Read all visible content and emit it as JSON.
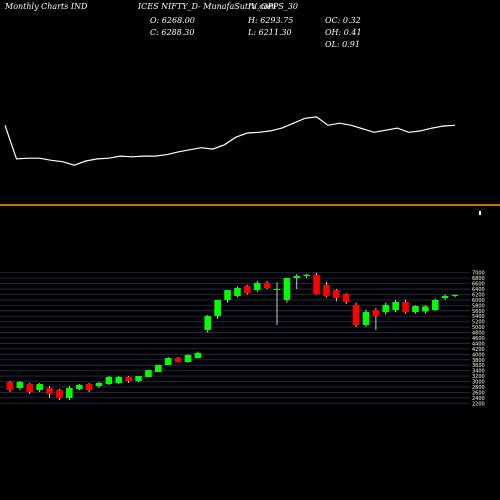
{
  "chart_data": [
    {
      "type": "line",
      "title": "Monthly Charts IND",
      "subtitle": "ICES NIFTY_D- MunafaSutra.com",
      "symbol": "IV_OPPS_30",
      "stats": [
        "O: 6268.00",
        "C: 6288.30",
        "H: 6293.75",
        "L: 6211.30",
        "OC: 0.32",
        "OH: 0.41",
        "OL: 0.91"
      ],
      "color": "#ffffff",
      "ylim": [
        0,
        100
      ],
      "values": [
        71,
        23,
        24,
        24,
        21,
        19,
        14,
        20,
        23,
        24,
        27,
        26,
        27,
        27,
        29,
        33,
        36,
        39,
        37,
        43,
        54,
        60,
        61,
        63,
        67,
        74,
        81,
        83,
        71,
        74,
        71,
        66,
        61,
        64,
        67,
        61,
        63,
        67,
        70,
        71
      ]
    },
    {
      "type": "candlestick",
      "up_color": "#00ff00",
      "down_color": "#ff0000",
      "grid": true,
      "ylim": [
        2100,
        7100
      ],
      "yticks": [
        2200,
        2400,
        2600,
        2800,
        3000,
        3200,
        3400,
        3600,
        3800,
        4000,
        4200,
        4400,
        4600,
        4800,
        5000,
        5200,
        5400,
        5600,
        5800,
        6000,
        6200,
        6400,
        6600,
        6800,
        7000
      ],
      "open": [
        2982,
        2762,
        2909,
        2688,
        2762,
        2688,
        2394,
        2725,
        2909,
        2835,
        2909,
        2945,
        3166,
        3019,
        3166,
        3350,
        3607,
        3864,
        3717,
        3864,
        4894,
        5408,
        5997,
        6144,
        6511,
        6364,
        6621,
        6364,
        5997,
        6805,
        6880,
        6916,
        6550,
        6364,
        6217,
        5813,
        5078,
        5629,
        5556,
        5629,
        5923,
        5556,
        5580,
        5629,
        6070,
        6144
      ],
      "high": [
        3019,
        3019,
        2945,
        2945,
        2835,
        2725,
        2835,
        2909,
        2945,
        2982,
        3203,
        3203,
        3203,
        3203,
        3423,
        3607,
        3900,
        3900,
        4000,
        4100,
        5450,
        6000,
        6364,
        6500,
        6550,
        6700,
        6700,
        6650,
        6805,
        6950,
        6950,
        7000,
        6650,
        6400,
        6250,
        5900,
        5650,
        5700,
        5900,
        6000,
        6000,
        5800,
        5800,
        6050,
        6200,
        6200
      ],
      "low": [
        2615,
        2688,
        2541,
        2615,
        2394,
        2321,
        2321,
        2688,
        2615,
        2762,
        2872,
        2909,
        2945,
        2982,
        3166,
        3350,
        3607,
        3700,
        3700,
        3864,
        4800,
        5300,
        5900,
        6100,
        6200,
        6300,
        6400,
        5078,
        5900,
        6400,
        6800,
        6200,
        6100,
        5950,
        5850,
        5000,
        5000,
        4894,
        5450,
        5550,
        5500,
        5500,
        5500,
        5600,
        6000,
        6100
      ],
      "close": [
        2688,
        2982,
        2615,
        2909,
        2541,
        2394,
        2762,
        2872,
        2688,
        2945,
        3166,
        3166,
        3019,
        3203,
        3423,
        3607,
        3864,
        3717,
        3975,
        4048,
        5408,
        5997,
        6364,
        6438,
        6254,
        6621,
        6438,
        6400,
        6805,
        6880,
        6930,
        6217,
        6144,
        6070,
        5923,
        5078,
        5556,
        5408,
        5813,
        5923,
        5556,
        5776,
        5760,
        5997,
        6144,
        6180
      ]
    }
  ]
}
